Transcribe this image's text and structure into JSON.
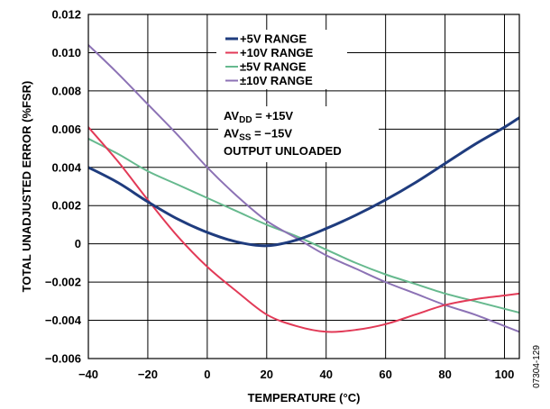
{
  "chart_data": {
    "type": "line",
    "xlabel": "TEMPERATURE (°C)",
    "ylabel": "TOTAL UNADJUSTED ERROR (%FSR)",
    "xlim": [
      -40,
      105
    ],
    "ylim": [
      -0.006,
      0.012
    ],
    "xticks": [
      -40,
      -20,
      0,
      20,
      40,
      60,
      80,
      100
    ],
    "xtick_labels": [
      "−40",
      "−20",
      "0",
      "20",
      "40",
      "60",
      "80",
      "100"
    ],
    "yticks": [
      0.012,
      0.01,
      0.008,
      0.006,
      0.004,
      0.002,
      0,
      -0.002,
      -0.004,
      -0.006
    ],
    "ytick_labels": [
      "0.012",
      "0.010",
      "0.008",
      "0.006",
      "0.004",
      "0.002",
      "0",
      "−0.002",
      "−0.004",
      "−0.006"
    ],
    "grid": true,
    "legend_position": "top-center",
    "series": [
      {
        "name": "+5V RANGE",
        "color": "#1f3c7e",
        "x": [
          -40,
          -30,
          -20,
          -10,
          0,
          10,
          20,
          30,
          40,
          50,
          60,
          70,
          80,
          90,
          100,
          105
        ],
        "y": [
          0.004,
          0.0032,
          0.0022,
          0.0013,
          0.0006,
          0.0001,
          -0.0001,
          0.0002,
          0.0008,
          0.0015,
          0.0023,
          0.0032,
          0.0042,
          0.0052,
          0.0061,
          0.0066
        ]
      },
      {
        "name": "+10V RANGE",
        "color": "#e23a57",
        "x": [
          -40,
          -30,
          -20,
          -10,
          0,
          10,
          20,
          30,
          40,
          50,
          60,
          70,
          80,
          90,
          100,
          105
        ],
        "y": [
          0.0061,
          0.0043,
          0.0023,
          0.0004,
          -0.0012,
          -0.0025,
          -0.0037,
          -0.0043,
          -0.0046,
          -0.0045,
          -0.0042,
          -0.0037,
          -0.0032,
          -0.0029,
          -0.0027,
          -0.0026
        ]
      },
      {
        "name": "±5V RANGE",
        "color": "#66b98e",
        "x": [
          -40,
          -30,
          -20,
          -10,
          0,
          10,
          20,
          30,
          40,
          50,
          60,
          70,
          80,
          90,
          100,
          105
        ],
        "y": [
          0.0055,
          0.0047,
          0.0038,
          0.0031,
          0.0024,
          0.0017,
          0.001,
          0.0004,
          -0.0003,
          -0.001,
          -0.0016,
          -0.0021,
          -0.0026,
          -0.003,
          -0.0034,
          -0.0036
        ]
      },
      {
        "name": "±10V RANGE",
        "color": "#8c72b5",
        "x": [
          -40,
          -30,
          -20,
          -10,
          0,
          10,
          20,
          30,
          40,
          50,
          60,
          70,
          80,
          90,
          100,
          105
        ],
        "y": [
          0.0104,
          0.0089,
          0.0073,
          0.0057,
          0.004,
          0.0025,
          0.0012,
          0.0003,
          -0.0006,
          -0.0013,
          -0.002,
          -0.0026,
          -0.0032,
          -0.0037,
          -0.0043,
          -0.0046
        ]
      }
    ],
    "annotations": [
      {
        "main": "AV",
        "sub": "DD",
        "rest": " = +15V"
      },
      {
        "main": "AV",
        "sub": "SS",
        "rest": " = −15V"
      },
      {
        "main": "OUTPUT UNLOADED",
        "sub": "",
        "rest": ""
      }
    ],
    "figure_id": "07304-129"
  }
}
